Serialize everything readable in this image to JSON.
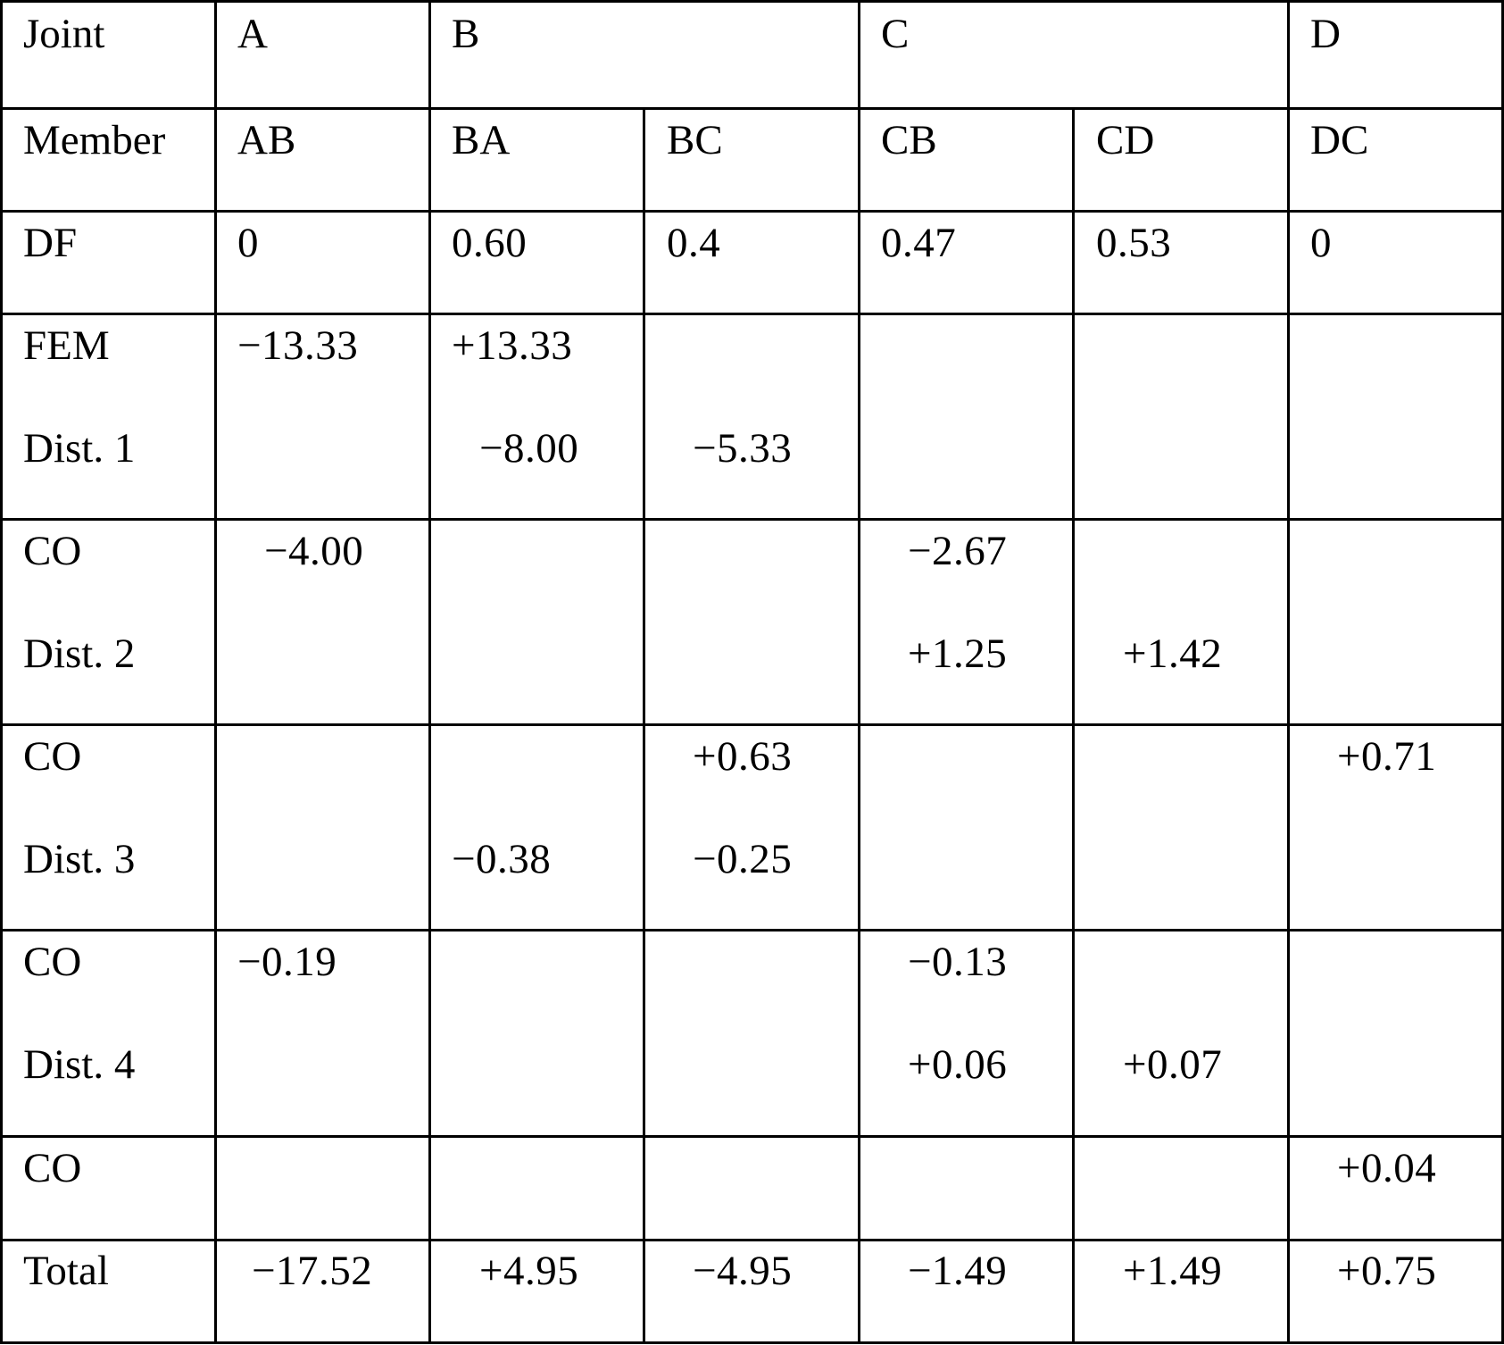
{
  "table": {
    "header_joint": {
      "label": "Joint",
      "A": "A",
      "B": "B",
      "C": "C",
      "D": "D"
    },
    "header_member": {
      "label": "Member",
      "AB": "AB",
      "BA": "BA",
      "BC": "BC",
      "CB": "CB",
      "CD": "CD",
      "DC": "DC"
    },
    "df": {
      "label": "DF",
      "AB": "0",
      "BA": "0.60",
      "BC": "0.4",
      "CB": "0.47",
      "CD": "0.53",
      "DC": "0"
    },
    "fem": {
      "label": "FEM",
      "AB": "−13.33",
      "BA": "+13.33"
    },
    "dist1": {
      "label": "Dist. 1",
      "BA": "−8.00",
      "BC": "−5.33"
    },
    "co1": {
      "label": "CO",
      "AB": "−4.00",
      "CB": "−2.67"
    },
    "dist2": {
      "label": "Dist. 2",
      "CB": "+1.25",
      "CD": "+1.42"
    },
    "co2": {
      "label": "CO",
      "BC": "+0.63",
      "DC": "+0.71"
    },
    "dist3": {
      "label": "Dist. 3",
      "BA": "−0.38",
      "BC": "−0.25"
    },
    "co3": {
      "label": "CO",
      "AB": "−0.19",
      "CB": "−0.13"
    },
    "dist4": {
      "label": "Dist. 4",
      "CB": "+0.06",
      "CD": "+0.07"
    },
    "co4": {
      "label": "CO",
      "DC": "+0.04"
    },
    "total": {
      "label": "Total",
      "AB": "−17.52",
      "BA": "+4.95",
      "BC": "−4.95",
      "CB": "−1.49",
      "CD": "+1.49",
      "DC": "+0.75"
    }
  }
}
